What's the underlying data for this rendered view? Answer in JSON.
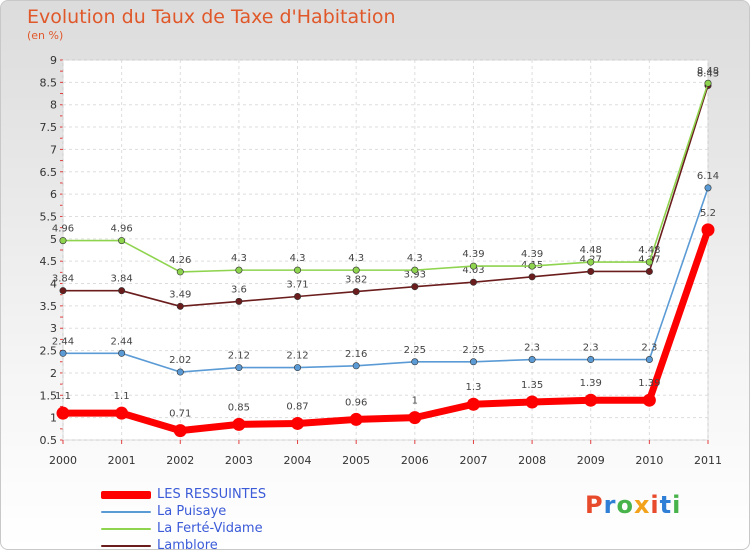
{
  "title": "Evolution du Taux de Taxe d'Habitation",
  "subtitle": "(en %)",
  "logo": {
    "letters": [
      {
        "ch": "P",
        "color": "#e84a2c"
      },
      {
        "ch": "r",
        "color": "#2f7fd6"
      },
      {
        "ch": "o",
        "color": "#47b34a"
      },
      {
        "ch": "x",
        "color": "#f2a21b"
      },
      {
        "ch": "i",
        "color": "#e84a2c"
      },
      {
        "ch": "t",
        "color": "#2f7fd6"
      },
      {
        "ch": "i",
        "color": "#47b34a"
      }
    ]
  },
  "chart_data": {
    "type": "line",
    "x": [
      "2000",
      "2001",
      "2002",
      "2003",
      "2004",
      "2005",
      "2006",
      "2007",
      "2008",
      "2009",
      "2010",
      "2011"
    ],
    "ylim": [
      0.5,
      9
    ],
    "yticks": [
      "0.5",
      "1",
      "1.5",
      "2",
      "2.5",
      "3",
      "3.5",
      "4",
      "4.5",
      "5",
      "5.5",
      "6",
      "6.5",
      "7",
      "7.5",
      "8",
      "8.5",
      "9"
    ],
    "grid": true,
    "legend_position": "bottom-left",
    "series": [
      {
        "name": "Lamblore",
        "color": "#6b1d1d",
        "values": [
          3.84,
          3.84,
          3.49,
          3.6,
          3.71,
          3.82,
          3.93,
          4.03,
          4.15,
          4.27,
          4.27,
          8.43
        ],
        "labels": [
          "3.84",
          "3.84",
          "3.49",
          "3.6",
          "3.71",
          "3.82",
          "3.93",
          "4.03",
          "4.15",
          "4.27",
          "4.27",
          "8.43"
        ]
      },
      {
        "name": "La Ferté-Vidame",
        "color": "#8fd44f",
        "values": [
          4.96,
          4.96,
          4.26,
          4.3,
          4.3,
          4.3,
          4.3,
          4.39,
          4.39,
          4.48,
          4.48,
          8.48
        ],
        "labels": [
          "4.96",
          "4.96",
          "4.26",
          "4.3",
          "4.3",
          "4.3",
          "4.3",
          "4.39",
          "4.39",
          "4.48",
          "4.48",
          "8.48"
        ]
      },
      {
        "name": "La Puisaye",
        "color": "#5b9bd5",
        "values": [
          2.44,
          2.44,
          2.02,
          2.12,
          2.12,
          2.16,
          2.25,
          2.25,
          2.3,
          2.3,
          2.3,
          6.14
        ],
        "labels": [
          "2.44",
          "2.44",
          "2.02",
          "2.12",
          "2.12",
          "2.16",
          "2.25",
          "2.25",
          "2.3",
          "2.3",
          "2.3",
          "6.14"
        ]
      },
      {
        "name": "LES RESSUINTES",
        "color": "#ff0000",
        "values": [
          1.1,
          1.1,
          0.71,
          0.85,
          0.87,
          0.96,
          1.0,
          1.3,
          1.35,
          1.39,
          1.39,
          5.2
        ],
        "labels": [
          "1.1",
          "1.1",
          "0.71",
          "0.85",
          "0.87",
          "0.96",
          "1",
          "1.3",
          "1.35",
          "1.39",
          "1.39",
          "5.2"
        ]
      }
    ],
    "legend": [
      {
        "name": "LES RESSUINTES",
        "color": "#ff0000",
        "thick": true
      },
      {
        "name": "La Puisaye",
        "color": "#5b9bd5",
        "thick": false
      },
      {
        "name": "La Ferté-Vidame",
        "color": "#8fd44f",
        "thick": false
      },
      {
        "name": "Lamblore",
        "color": "#6b1d1d",
        "thick": false
      }
    ]
  }
}
